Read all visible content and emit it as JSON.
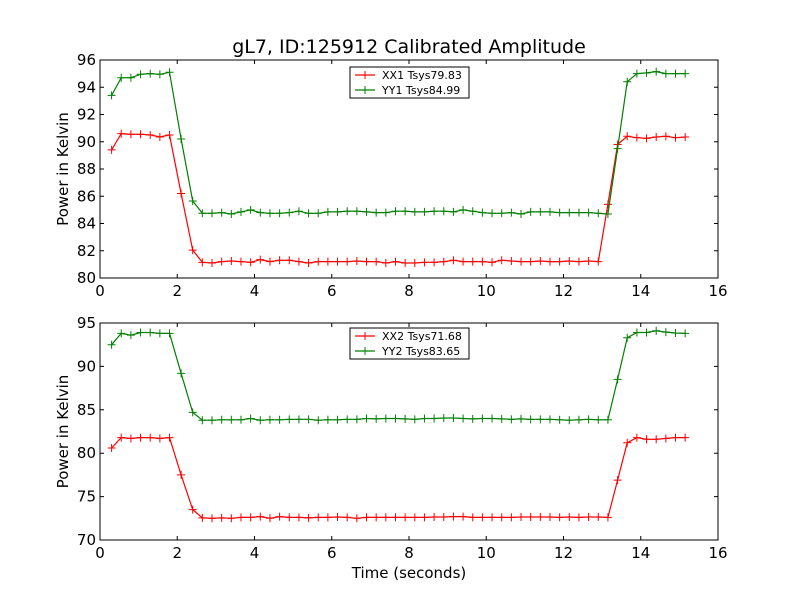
{
  "figure": {
    "title": "gL7, ID:125912 Calibrated Amplitude",
    "xlabel": "Time (seconds)"
  },
  "chart_data": [
    {
      "type": "line",
      "title": "gL7, ID:125912 Calibrated Amplitude",
      "xlabel": "",
      "ylabel": "Power in Kelvin",
      "xlim": [
        0,
        16
      ],
      "ylim": [
        80,
        96
      ],
      "xticks": [
        "0",
        "2",
        "4",
        "6",
        "8",
        "10",
        "12",
        "14",
        "16"
      ],
      "yticks": [
        "80",
        "82",
        "84",
        "86",
        "88",
        "90",
        "92",
        "94",
        "96"
      ],
      "grid": false,
      "legend_position": "top-center",
      "x": [
        0.3,
        0.55,
        0.8,
        1.05,
        1.3,
        1.55,
        1.8,
        2.1,
        2.4,
        2.65,
        2.9,
        3.15,
        3.4,
        3.65,
        3.9,
        4.15,
        4.4,
        4.65,
        4.9,
        5.15,
        5.4,
        5.65,
        5.9,
        6.15,
        6.4,
        6.65,
        6.9,
        7.15,
        7.4,
        7.65,
        7.9,
        8.15,
        8.4,
        8.65,
        8.9,
        9.15,
        9.4,
        9.65,
        9.9,
        10.15,
        10.4,
        10.65,
        10.9,
        11.15,
        11.4,
        11.65,
        11.9,
        12.15,
        12.4,
        12.65,
        12.9,
        13.15,
        13.4,
        13.65,
        13.9,
        14.15,
        14.4,
        14.65,
        14.9,
        15.15
      ],
      "series": [
        {
          "name": "XX1 Tsys79.83",
          "color": "#ff0000",
          "values": [
            89.4,
            90.6,
            90.55,
            90.55,
            90.5,
            90.35,
            90.5,
            86.2,
            82.05,
            81.15,
            81.1,
            81.2,
            81.25,
            81.2,
            81.15,
            81.35,
            81.2,
            81.3,
            81.3,
            81.2,
            81.1,
            81.2,
            81.2,
            81.2,
            81.2,
            81.25,
            81.2,
            81.2,
            81.1,
            81.2,
            81.1,
            81.1,
            81.15,
            81.15,
            81.2,
            81.3,
            81.2,
            81.2,
            81.2,
            81.15,
            81.3,
            81.25,
            81.2,
            81.2,
            81.25,
            81.2,
            81.2,
            81.25,
            81.2,
            81.25,
            81.2,
            85.4,
            89.8,
            90.4,
            90.3,
            90.25,
            90.35,
            90.4,
            90.3,
            90.35
          ]
        },
        {
          "name": "YY1 Tsys84.99",
          "color": "#008000",
          "values": [
            93.4,
            94.7,
            94.7,
            94.95,
            95.0,
            94.95,
            95.1,
            90.2,
            85.65,
            84.75,
            84.75,
            84.8,
            84.7,
            84.85,
            85.0,
            84.8,
            84.75,
            84.75,
            84.8,
            84.9,
            84.75,
            84.75,
            84.85,
            84.85,
            84.9,
            84.9,
            84.85,
            84.8,
            84.8,
            84.9,
            84.9,
            84.85,
            84.85,
            84.9,
            84.9,
            84.85,
            85.0,
            84.9,
            84.8,
            84.75,
            84.75,
            84.8,
            84.7,
            84.85,
            84.85,
            84.85,
            84.8,
            84.8,
            84.8,
            84.8,
            84.75,
            84.7,
            89.5,
            94.4,
            95.0,
            95.05,
            95.15,
            95.0,
            95.0,
            95.0
          ]
        }
      ]
    },
    {
      "type": "line",
      "title": "",
      "xlabel": "Time (seconds)",
      "ylabel": "Power in Kelvin",
      "xlim": [
        0,
        16
      ],
      "ylim": [
        70,
        95
      ],
      "xticks": [
        "0",
        "2",
        "4",
        "6",
        "8",
        "10",
        "12",
        "14",
        "16"
      ],
      "yticks": [
        "70",
        "75",
        "80",
        "85",
        "90",
        "95"
      ],
      "grid": false,
      "legend_position": "top-center",
      "x": [
        0.3,
        0.55,
        0.8,
        1.05,
        1.3,
        1.55,
        1.8,
        2.1,
        2.4,
        2.65,
        2.9,
        3.15,
        3.4,
        3.65,
        3.9,
        4.15,
        4.4,
        4.65,
        4.9,
        5.15,
        5.4,
        5.65,
        5.9,
        6.15,
        6.4,
        6.65,
        6.9,
        7.15,
        7.4,
        7.65,
        7.9,
        8.15,
        8.4,
        8.65,
        8.9,
        9.15,
        9.4,
        9.65,
        9.9,
        10.15,
        10.4,
        10.65,
        10.9,
        11.15,
        11.4,
        11.65,
        11.9,
        12.15,
        12.4,
        12.65,
        12.9,
        13.15,
        13.4,
        13.65,
        13.9,
        14.15,
        14.4,
        14.65,
        14.9,
        15.15
      ],
      "series": [
        {
          "name": "XX2 Tsys71.68",
          "color": "#ff0000",
          "values": [
            80.6,
            81.8,
            81.7,
            81.8,
            81.8,
            81.7,
            81.8,
            77.5,
            73.5,
            72.55,
            72.5,
            72.55,
            72.5,
            72.6,
            72.6,
            72.7,
            72.5,
            72.7,
            72.6,
            72.6,
            72.55,
            72.6,
            72.6,
            72.65,
            72.6,
            72.5,
            72.6,
            72.6,
            72.6,
            72.6,
            72.6,
            72.6,
            72.6,
            72.65,
            72.65,
            72.7,
            72.7,
            72.6,
            72.6,
            72.6,
            72.6,
            72.6,
            72.65,
            72.65,
            72.65,
            72.65,
            72.6,
            72.65,
            72.6,
            72.65,
            72.65,
            72.6,
            76.9,
            81.2,
            81.8,
            81.6,
            81.6,
            81.7,
            81.8,
            81.8
          ]
        },
        {
          "name": "YY2 Tsys83.65",
          "color": "#008000",
          "values": [
            92.5,
            93.8,
            93.6,
            93.9,
            93.9,
            93.8,
            93.8,
            89.2,
            84.7,
            83.8,
            83.8,
            83.85,
            83.85,
            83.85,
            84.0,
            83.8,
            83.85,
            83.85,
            83.9,
            83.9,
            83.9,
            83.8,
            83.85,
            83.85,
            83.9,
            83.9,
            84.0,
            83.95,
            84.0,
            84.0,
            83.95,
            83.9,
            84.0,
            84.0,
            84.05,
            84.05,
            84.0,
            83.95,
            84.0,
            84.0,
            83.95,
            83.9,
            83.95,
            83.9,
            83.9,
            83.9,
            83.85,
            83.8,
            83.85,
            83.9,
            83.85,
            83.85,
            88.5,
            93.3,
            93.9,
            93.9,
            94.1,
            93.95,
            93.85,
            93.8
          ]
        }
      ]
    }
  ]
}
